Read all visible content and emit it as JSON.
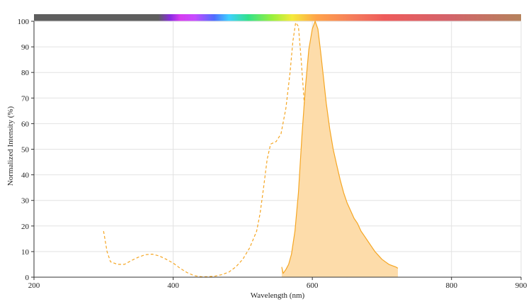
{
  "chart_data": {
    "type": "line",
    "xlabel": "Wavelength (nm)",
    "ylabel": "Normalized Intensity (%)",
    "xlim": [
      200,
      900
    ],
    "ylim": [
      0,
      100
    ],
    "x_ticks": [
      200,
      400,
      600,
      800,
      900
    ],
    "y_ticks": [
      0,
      10,
      20,
      30,
      40,
      50,
      60,
      70,
      80,
      90,
      100
    ],
    "grid": true,
    "wavelength_color_bar": true,
    "series": [
      {
        "style": "dashed",
        "fill": false,
        "color": "#f5a623",
        "points": [
          [
            300,
            18
          ],
          [
            305,
            10
          ],
          [
            310,
            6
          ],
          [
            320,
            5
          ],
          [
            330,
            5
          ],
          [
            340,
            6.5
          ],
          [
            350,
            7.8
          ],
          [
            360,
            8.8
          ],
          [
            370,
            9
          ],
          [
            380,
            8.3
          ],
          [
            390,
            7
          ],
          [
            400,
            5.5
          ],
          [
            410,
            3.5
          ],
          [
            420,
            1.8
          ],
          [
            430,
            0.6
          ],
          [
            440,
            0.2
          ],
          [
            450,
            0.2
          ],
          [
            460,
            0.4
          ],
          [
            470,
            1
          ],
          [
            480,
            2
          ],
          [
            490,
            4
          ],
          [
            500,
            7
          ],
          [
            510,
            11.5
          ],
          [
            520,
            18
          ],
          [
            525,
            25
          ],
          [
            530,
            35
          ],
          [
            535,
            46
          ],
          [
            540,
            52
          ],
          [
            548,
            53
          ],
          [
            555,
            56
          ],
          [
            562,
            66
          ],
          [
            568,
            80
          ],
          [
            572,
            92
          ],
          [
            576,
            99.5
          ],
          [
            580,
            98
          ],
          [
            584,
            85
          ],
          [
            590,
            62
          ],
          [
            596,
            40
          ],
          [
            602,
            25
          ],
          [
            608,
            15
          ],
          [
            615,
            8
          ],
          [
            622,
            4
          ],
          [
            630,
            1.5
          ],
          [
            640,
            0.4
          ],
          [
            650,
            0
          ]
        ]
      },
      {
        "style": "solid",
        "fill": true,
        "color": "#f5a623",
        "fill_color": "#fddcaa",
        "points": [
          [
            556,
            4
          ],
          [
            558,
            1.5
          ],
          [
            562,
            3
          ],
          [
            566,
            5
          ],
          [
            570,
            9
          ],
          [
            575,
            18
          ],
          [
            580,
            33
          ],
          [
            585,
            55
          ],
          [
            590,
            74
          ],
          [
            595,
            89
          ],
          [
            600,
            97
          ],
          [
            604,
            100
          ],
          [
            608,
            97
          ],
          [
            612,
            88
          ],
          [
            616,
            78
          ],
          [
            620,
            68
          ],
          [
            625,
            58
          ],
          [
            630,
            50
          ],
          [
            635,
            44
          ],
          [
            640,
            38
          ],
          [
            645,
            33
          ],
          [
            650,
            29
          ],
          [
            655,
            26
          ],
          [
            660,
            23
          ],
          [
            665,
            21
          ],
          [
            670,
            18
          ],
          [
            675,
            16
          ],
          [
            680,
            14
          ],
          [
            685,
            12
          ],
          [
            690,
            10
          ],
          [
            695,
            8.5
          ],
          [
            700,
            7
          ],
          [
            705,
            6
          ],
          [
            710,
            5
          ],
          [
            715,
            4.5
          ],
          [
            720,
            4
          ],
          [
            723,
            3.5
          ]
        ]
      }
    ]
  }
}
